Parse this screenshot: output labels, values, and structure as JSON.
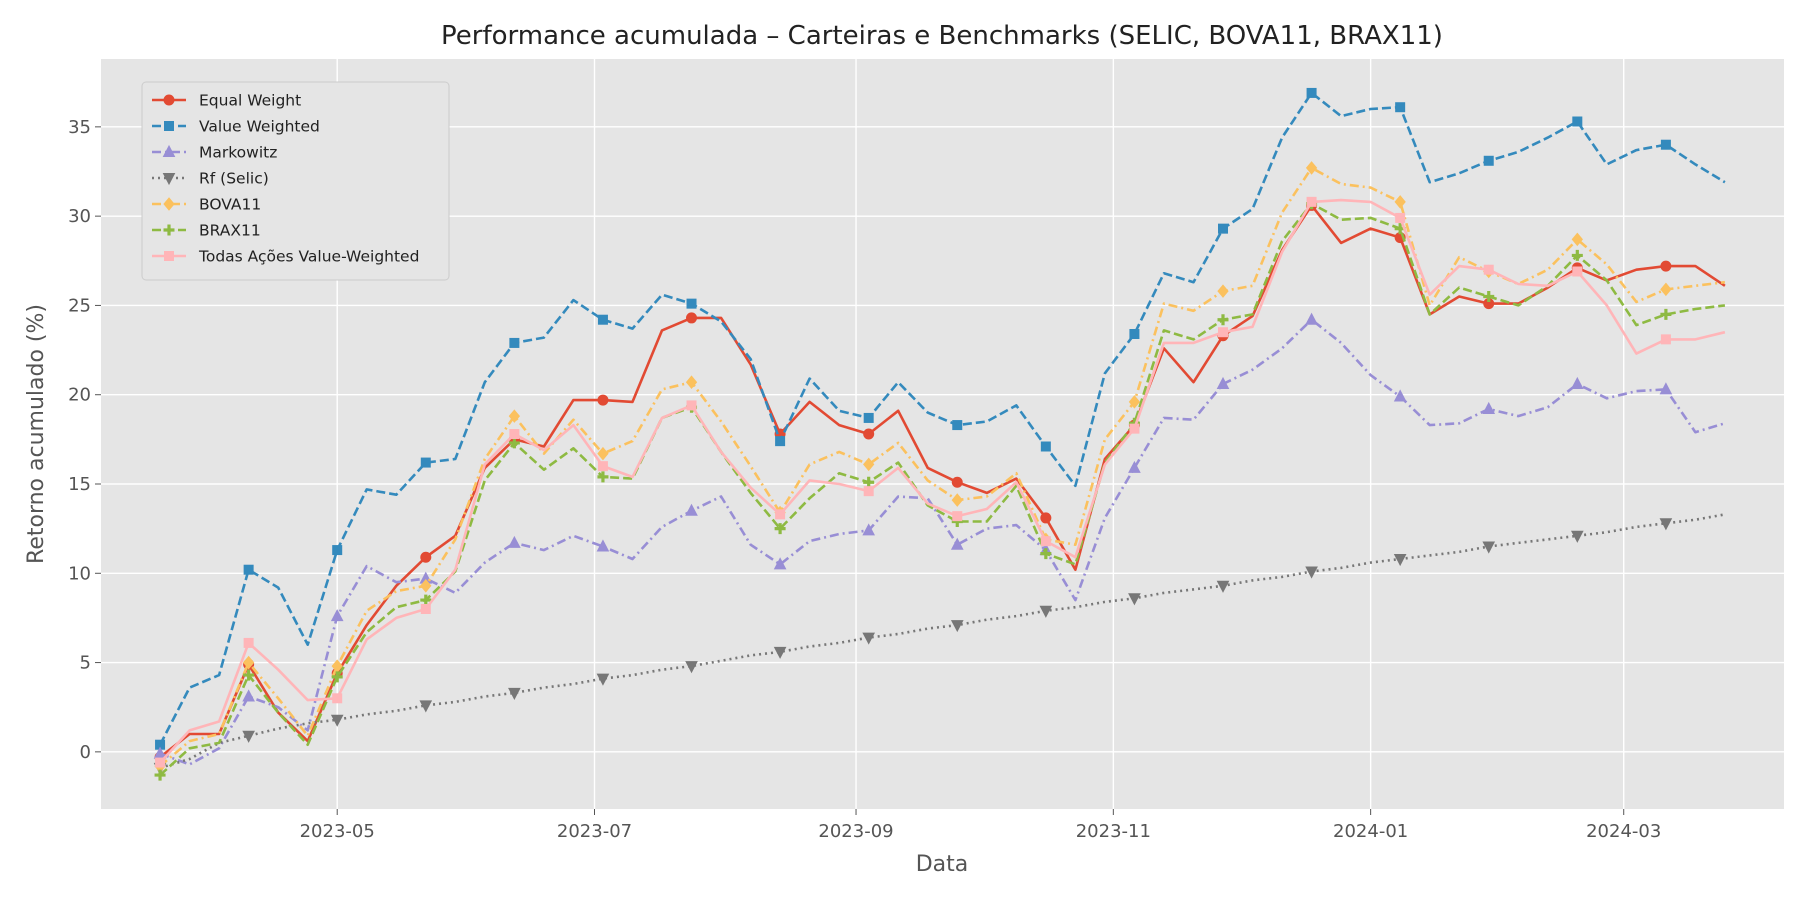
{
  "chart_data": {
    "type": "line",
    "title": "Performance acumulada – Carteiras e Benchmarks (SELIC, BOVA11, BRAX11)",
    "xlabel": "Data",
    "ylabel": "Retorno acumulado (%)",
    "x_start": "2023-03-20",
    "x_step_days": 7,
    "xlim": [
      "2023-03-06",
      "2024-04-08"
    ],
    "ylim": [
      -3.2,
      38.8
    ],
    "xticks": [
      {
        "date": "2023-05-01",
        "label": "2023-05"
      },
      {
        "date": "2023-07-01",
        "label": "2023-07"
      },
      {
        "date": "2023-09-01",
        "label": "2023-09"
      },
      {
        "date": "2023-11-01",
        "label": "2023-11"
      },
      {
        "date": "2024-01-01",
        "label": "2024-01"
      },
      {
        "date": "2024-03-01",
        "label": "2024-03"
      }
    ],
    "yticks": [
      0,
      5,
      10,
      15,
      20,
      25,
      30,
      35
    ],
    "grid": true,
    "legend_position": "upper-left",
    "series": [
      {
        "name": "Equal Weight",
        "color": "#E24A33",
        "linestyle": "solid",
        "marker": "circle",
        "values": [
          -0.3,
          1.0,
          1.0,
          4.9,
          2.2,
          0.6,
          4.4,
          7.1,
          9.3,
          10.9,
          12.1,
          15.9,
          17.5,
          17.1,
          19.7,
          19.7,
          19.6,
          23.6,
          24.3,
          24.3,
          21.7,
          17.8,
          19.6,
          18.3,
          17.8,
          19.1,
          15.9,
          15.1,
          14.5,
          15.3,
          13.1,
          10.2,
          16.4,
          18.3,
          22.6,
          20.7,
          23.3,
          24.4,
          28.1,
          30.6,
          28.5,
          29.3,
          28.8,
          24.5,
          25.5,
          25.1,
          25.1,
          26.0,
          27.1,
          26.4,
          27.0,
          27.2,
          27.2,
          26.1
        ]
      },
      {
        "name": "Value Weighted",
        "color": "#348ABD",
        "linestyle": "dashed",
        "marker": "square",
        "values": [
          0.4,
          3.6,
          4.3,
          10.2,
          9.2,
          6.0,
          11.3,
          14.7,
          14.4,
          16.2,
          16.4,
          20.7,
          22.9,
          23.2,
          25.3,
          24.2,
          23.7,
          25.6,
          25.1,
          24.1,
          22.0,
          17.4,
          20.9,
          19.1,
          18.7,
          20.7,
          19.0,
          18.3,
          18.5,
          19.4,
          17.1,
          14.9,
          21.2,
          23.4,
          26.8,
          26.3,
          29.3,
          30.4,
          34.4,
          36.9,
          35.6,
          36.0,
          36.1,
          31.9,
          32.4,
          33.1,
          33.6,
          34.4,
          35.3,
          32.9,
          33.7,
          34.0,
          32.9,
          31.9
        ]
      },
      {
        "name": "Markowitz",
        "color": "#988ED5",
        "linestyle": "dashdot",
        "marker": "triangle-up",
        "values": [
          -0.1,
          -0.7,
          0.2,
          3.1,
          2.5,
          1.2,
          7.6,
          10.4,
          9.5,
          9.7,
          8.9,
          10.6,
          11.7,
          11.3,
          12.1,
          11.5,
          10.8,
          12.6,
          13.5,
          14.3,
          11.6,
          10.5,
          11.8,
          12.2,
          12.4,
          14.3,
          14.2,
          11.6,
          12.5,
          12.7,
          11.3,
          8.5,
          13.1,
          15.9,
          18.7,
          18.6,
          20.6,
          21.4,
          22.6,
          24.2,
          22.9,
          21.1,
          19.9,
          18.3,
          18.4,
          19.2,
          18.8,
          19.3,
          20.6,
          19.8,
          20.2,
          20.3,
          17.9,
          18.4
        ]
      },
      {
        "name": "Rf (Selic)",
        "color": "#777777",
        "linestyle": "dotted",
        "marker": "triangle-down",
        "values": [
          -0.9,
          -0.4,
          0.5,
          0.9,
          1.3,
          1.6,
          1.8,
          2.1,
          2.3,
          2.6,
          2.8,
          3.1,
          3.3,
          3.6,
          3.8,
          4.1,
          4.3,
          4.6,
          4.8,
          5.1,
          5.4,
          5.6,
          5.9,
          6.1,
          6.4,
          6.6,
          6.9,
          7.1,
          7.4,
          7.6,
          7.9,
          8.1,
          8.4,
          8.6,
          8.9,
          9.1,
          9.3,
          9.6,
          9.8,
          10.1,
          10.3,
          10.6,
          10.8,
          11.0,
          11.2,
          11.5,
          11.7,
          11.9,
          12.1,
          12.3,
          12.6,
          12.8,
          13.0,
          13.3
        ]
      },
      {
        "name": "BOVA11",
        "color": "#FBC15E",
        "linestyle": "dashdot",
        "marker": "diamond",
        "values": [
          -0.8,
          0.6,
          1.0,
          5.0,
          3.0,
          0.9,
          4.8,
          7.9,
          9.0,
          9.3,
          11.9,
          16.4,
          18.8,
          16.7,
          18.6,
          16.7,
          17.4,
          20.3,
          20.7,
          18.5,
          16.0,
          13.4,
          16.1,
          16.8,
          16.1,
          17.3,
          15.2,
          14.1,
          14.3,
          15.6,
          11.9,
          11.6,
          17.5,
          19.6,
          25.1,
          24.7,
          25.8,
          26.1,
          30.2,
          32.7,
          31.8,
          31.6,
          30.8,
          25.0,
          27.7,
          26.9,
          26.2,
          27.0,
          28.7,
          27.3,
          25.2,
          25.9,
          26.1,
          26.3
        ]
      },
      {
        "name": "BRAX11",
        "color": "#8EBA42",
        "linestyle": "dashed",
        "marker": "plus",
        "values": [
          -1.3,
          0.2,
          0.5,
          4.3,
          2.2,
          0.4,
          4.2,
          6.7,
          8.1,
          8.5,
          10.1,
          15.2,
          17.3,
          15.8,
          17.0,
          15.4,
          15.3,
          18.7,
          19.3,
          16.8,
          14.5,
          12.5,
          14.2,
          15.6,
          15.1,
          16.2,
          13.8,
          12.9,
          12.9,
          14.9,
          11.1,
          10.5,
          16.2,
          18.4,
          23.6,
          23.1,
          24.2,
          24.5,
          28.6,
          30.7,
          29.8,
          29.9,
          29.3,
          24.5,
          26.0,
          25.5,
          25.0,
          26.1,
          27.8,
          26.4,
          23.9,
          24.5,
          24.8,
          25.0
        ]
      },
      {
        "name": "Todas Ações Value-Weighted",
        "color": "#FFB5B8",
        "linestyle": "solid",
        "marker": "square",
        "values": [
          -0.6,
          1.2,
          1.7,
          6.1,
          4.6,
          2.9,
          3.0,
          6.3,
          7.5,
          8.0,
          10.2,
          16.1,
          17.8,
          16.9,
          18.3,
          16.0,
          15.4,
          18.7,
          19.4,
          16.8,
          14.8,
          13.3,
          15.2,
          15.0,
          14.6,
          15.9,
          13.9,
          13.2,
          13.6,
          15.1,
          11.8,
          10.9,
          16.1,
          18.1,
          22.9,
          22.9,
          23.5,
          23.8,
          28.0,
          30.8,
          30.9,
          30.8,
          29.9,
          25.6,
          27.2,
          27.0,
          26.2,
          26.1,
          26.9,
          25.0,
          22.3,
          23.1,
          23.1,
          23.5
        ]
      }
    ]
  }
}
